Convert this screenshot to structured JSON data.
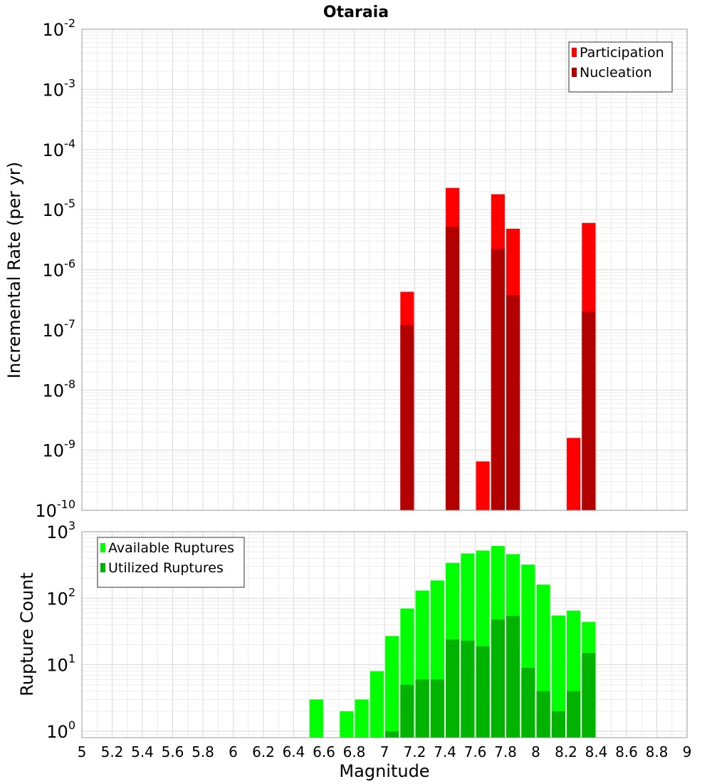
{
  "chart_data": [
    {
      "type": "bar",
      "title": "Otaraia",
      "ylabel": "Incremental Rate (per yr)",
      "xlabel": "",
      "yscale": "log",
      "ylim": [
        1e-10,
        0.01
      ],
      "xlim": [
        5,
        9
      ],
      "grid": true,
      "legend_position": "top-right",
      "bar_width": 0.09,
      "series": [
        {
          "name": "Participation",
          "color": "#ff0000",
          "x": [
            7.15,
            7.45,
            7.65,
            7.75,
            7.85,
            8.25,
            8.35
          ],
          "values": [
            4.3e-07,
            2.3e-05,
            6.5e-10,
            1.8e-05,
            4.8e-06,
            1.6e-09,
            6e-06
          ]
        },
        {
          "name": "Nucleation",
          "color": "#b20000",
          "x": [
            7.15,
            7.45,
            7.75,
            7.85,
            8.35
          ],
          "values": [
            1.2e-07,
            5.2e-06,
            2.2e-06,
            3.8e-07,
            2e-07
          ]
        }
      ],
      "y_ticks": [
        {
          "mantissa": "10",
          "exp": "-10",
          "v": 1e-10
        },
        {
          "mantissa": "10",
          "exp": "-9",
          "v": 1e-09
        },
        {
          "mantissa": "10",
          "exp": "-8",
          "v": 1e-08
        },
        {
          "mantissa": "10",
          "exp": "-7",
          "v": 1e-07
        },
        {
          "mantissa": "10",
          "exp": "-6",
          "v": 1e-06
        },
        {
          "mantissa": "10",
          "exp": "-5",
          "v": 1e-05
        },
        {
          "mantissa": "10",
          "exp": "-4",
          "v": 0.0001
        },
        {
          "mantissa": "10",
          "exp": "-3",
          "v": 0.001
        },
        {
          "mantissa": "10",
          "exp": "-2",
          "v": 0.01
        }
      ]
    },
    {
      "type": "bar",
      "title": "",
      "ylabel": "Rupture Count",
      "xlabel": "Magnitude",
      "yscale": "log",
      "ylim": [
        0.8,
        1000
      ],
      "xlim": [
        5,
        9
      ],
      "grid": true,
      "legend_position": "top-left",
      "bar_width": 0.09,
      "series": [
        {
          "name": "Available Ruptures",
          "color": "#00ff00",
          "x": [
            6.55,
            6.75,
            6.85,
            6.95,
            7.05,
            7.15,
            7.25,
            7.35,
            7.45,
            7.55,
            7.65,
            7.75,
            7.85,
            7.95,
            8.05,
            8.15,
            8.25,
            8.35
          ],
          "values": [
            3,
            2,
            3,
            8,
            27,
            70,
            130,
            185,
            340,
            470,
            520,
            610,
            460,
            320,
            160,
            55,
            65,
            44
          ]
        },
        {
          "name": "Utilized Ruptures",
          "color": "#00b300",
          "x": [
            7.05,
            7.15,
            7.25,
            7.35,
            7.45,
            7.55,
            7.65,
            7.75,
            7.85,
            7.95,
            8.05,
            8.15,
            8.25,
            8.35
          ],
          "values": [
            1,
            5,
            6,
            6,
            24,
            23,
            19,
            48,
            54,
            9,
            4,
            2,
            4,
            15
          ]
        }
      ],
      "y_ticks": [
        {
          "mantissa": "10",
          "exp": "0",
          "v": 1
        },
        {
          "mantissa": "10",
          "exp": "1",
          "v": 10
        },
        {
          "mantissa": "10",
          "exp": "2",
          "v": 100
        },
        {
          "mantissa": "10",
          "exp": "3",
          "v": 1000
        }
      ],
      "x_ticks": [
        "5",
        "5.2",
        "5.4",
        "5.6",
        "5.8",
        "6",
        "6.2",
        "6.4",
        "6.6",
        "6.8",
        "7",
        "7.2",
        "7.4",
        "7.6",
        "7.8",
        "8",
        "8.2",
        "8.4",
        "8.6",
        "8.8",
        "9"
      ]
    }
  ]
}
